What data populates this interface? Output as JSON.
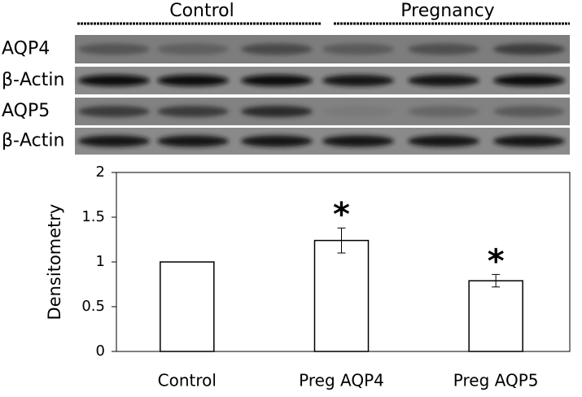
{
  "blot": {
    "groups": [
      "Control",
      "Pregnancy"
    ],
    "lanes": [
      "AQP4",
      "β-Actin",
      "AQP5",
      "β-Actin"
    ]
  },
  "chart_data": {
    "type": "bar",
    "ylabel": "Densitometry",
    "categories": [
      "Control",
      "Preg AQP4",
      "Preg AQP5"
    ],
    "values": [
      1,
      1.24,
      0.79
    ],
    "errors": [
      null,
      0.14,
      0.07
    ],
    "color": "#ffffff",
    "annotations": [
      {
        "text": "*",
        "category": "Preg AQP4"
      },
      {
        "text": "*",
        "category": "Preg AQP5"
      }
    ],
    "ylim": [
      0,
      2
    ],
    "yticks": [
      0,
      0.5,
      1,
      1.5,
      2
    ]
  }
}
